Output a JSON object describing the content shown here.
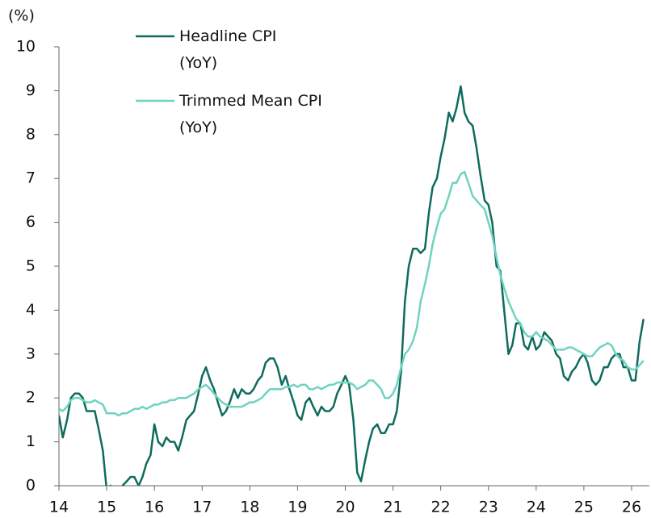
{
  "chart_data": {
    "type": "line",
    "ylabel": "(%)",
    "xlim": [
      14,
      26.35
    ],
    "xticks": [
      14,
      15,
      16,
      17,
      18,
      19,
      20,
      21,
      22,
      23,
      24,
      25,
      26
    ],
    "ylim": [
      0,
      10
    ],
    "yticks": [
      0,
      1,
      2,
      3,
      4,
      5,
      6,
      7,
      8,
      9,
      10
    ],
    "legend": "upper left",
    "x": [
      14,
      14.08,
      14.17,
      14.25,
      14.33,
      14.42,
      14.5,
      14.58,
      14.67,
      14.75,
      14.83,
      14.92,
      15,
      15.08,
      15.17,
      15.25,
      15.33,
      15.42,
      15.5,
      15.58,
      15.67,
      15.75,
      15.83,
      15.92,
      16,
      16.08,
      16.17,
      16.25,
      16.33,
      16.42,
      16.5,
      16.58,
      16.67,
      16.75,
      16.83,
      16.92,
      17,
      17.08,
      17.17,
      17.25,
      17.33,
      17.42,
      17.5,
      17.58,
      17.67,
      17.75,
      17.83,
      17.92,
      18,
      18.08,
      18.17,
      18.25,
      18.33,
      18.42,
      18.5,
      18.58,
      18.67,
      18.75,
      18.83,
      18.92,
      19,
      19.08,
      19.17,
      19.25,
      19.33,
      19.42,
      19.5,
      19.58,
      19.67,
      19.75,
      19.83,
      19.92,
      20,
      20.08,
      20.17,
      20.25,
      20.33,
      20.42,
      20.5,
      20.58,
      20.67,
      20.75,
      20.83,
      20.92,
      21,
      21.08,
      21.17,
      21.25,
      21.33,
      21.42,
      21.5,
      21.58,
      21.67,
      21.75,
      21.83,
      21.92,
      22,
      22.08,
      22.17,
      22.25,
      22.33,
      22.42,
      22.5,
      22.58,
      22.67,
      22.75,
      22.83,
      22.92,
      23,
      23.08,
      23.17,
      23.25,
      23.33,
      23.42,
      23.5,
      23.58,
      23.67,
      23.75,
      23.83,
      23.92,
      24,
      24.08,
      24.17,
      24.25,
      24.33,
      24.42,
      24.5,
      24.58,
      24.67,
      24.75,
      24.83,
      24.92,
      25,
      25.08,
      25.17,
      25.25,
      25.33,
      25.42,
      25.5,
      25.58,
      25.67,
      25.75,
      25.83,
      25.92,
      26,
      26.08,
      26.17,
      26.25
    ],
    "series": [
      {
        "name": "Headline CPI (YoY)",
        "color": "#0e6b5d",
        "values": [
          1.6,
          1.1,
          1.5,
          2.0,
          2.1,
          2.1,
          2.0,
          1.7,
          1.7,
          1.7,
          1.3,
          0.8,
          -0.1,
          0.0,
          -0.1,
          -0.2,
          0.0,
          0.1,
          0.2,
          0.2,
          0.0,
          0.2,
          0.5,
          0.7,
          1.4,
          1.0,
          0.9,
          1.1,
          1.0,
          1.0,
          0.8,
          1.1,
          1.5,
          1.6,
          1.7,
          2.1,
          2.5,
          2.7,
          2.4,
          2.2,
          1.9,
          1.6,
          1.7,
          1.9,
          2.2,
          2.0,
          2.2,
          2.1,
          2.1,
          2.2,
          2.4,
          2.5,
          2.8,
          2.9,
          2.9,
          2.7,
          2.3,
          2.5,
          2.2,
          1.9,
          1.6,
          1.5,
          1.9,
          2.0,
          1.8,
          1.6,
          1.8,
          1.7,
          1.7,
          1.8,
          2.1,
          2.3,
          2.5,
          2.3,
          1.5,
          0.3,
          0.1,
          0.6,
          1.0,
          1.3,
          1.4,
          1.2,
          1.2,
          1.4,
          1.4,
          1.7,
          2.6,
          4.2,
          5.0,
          5.4,
          5.4,
          5.3,
          5.4,
          6.2,
          6.8,
          7.0,
          7.5,
          7.9,
          8.5,
          8.3,
          8.6,
          9.1,
          8.5,
          8.3,
          8.2,
          7.7,
          7.1,
          6.5,
          6.4,
          6.0,
          5.0,
          4.9,
          4.0,
          3.0,
          3.2,
          3.7,
          3.7,
          3.2,
          3.1,
          3.4,
          3.1,
          3.2,
          3.5,
          3.4,
          3.3,
          3.0,
          2.9,
          2.5,
          2.4,
          2.6,
          2.7,
          2.9,
          3.0,
          2.8,
          2.4,
          2.3,
          2.4,
          2.7,
          2.7,
          2.9,
          3.0,
          3.0,
          2.7,
          2.7,
          2.4,
          2.4,
          3.3,
          3.8
        ]
      },
      {
        "name": "Trimmed Mean CPI (YoY)",
        "color": "#6fd3c0",
        "values": [
          1.75,
          1.7,
          1.8,
          1.95,
          2.0,
          2.0,
          1.95,
          1.9,
          1.9,
          1.95,
          1.9,
          1.85,
          1.65,
          1.65,
          1.65,
          1.6,
          1.65,
          1.65,
          1.7,
          1.75,
          1.75,
          1.8,
          1.75,
          1.8,
          1.85,
          1.85,
          1.9,
          1.9,
          1.95,
          1.95,
          2.0,
          2.0,
          2.0,
          2.05,
          2.1,
          2.2,
          2.25,
          2.3,
          2.2,
          2.1,
          2.0,
          1.9,
          1.85,
          1.8,
          1.8,
          1.8,
          1.8,
          1.85,
          1.9,
          1.9,
          1.95,
          2.0,
          2.1,
          2.2,
          2.2,
          2.2,
          2.2,
          2.25,
          2.25,
          2.3,
          2.25,
          2.3,
          2.3,
          2.2,
          2.2,
          2.25,
          2.2,
          2.25,
          2.3,
          2.3,
          2.35,
          2.35,
          2.35,
          2.35,
          2.3,
          2.2,
          2.25,
          2.3,
          2.4,
          2.4,
          2.3,
          2.2,
          2.0,
          2.0,
          2.1,
          2.3,
          2.7,
          3.0,
          3.1,
          3.3,
          3.6,
          4.2,
          4.6,
          5.0,
          5.5,
          5.9,
          6.2,
          6.3,
          6.6,
          6.9,
          6.9,
          7.1,
          7.15,
          6.9,
          6.6,
          6.5,
          6.4,
          6.3,
          6.0,
          5.7,
          5.2,
          4.8,
          4.5,
          4.2,
          4.0,
          3.8,
          3.7,
          3.5,
          3.4,
          3.4,
          3.5,
          3.4,
          3.35,
          3.3,
          3.2,
          3.1,
          3.1,
          3.1,
          3.15,
          3.15,
          3.1,
          3.05,
          3.0,
          2.95,
          2.95,
          3.05,
          3.15,
          3.2,
          3.25,
          3.2,
          3.0,
          2.9,
          2.85,
          2.7,
          2.65,
          2.65,
          2.75,
          2.85
        ]
      }
    ]
  }
}
